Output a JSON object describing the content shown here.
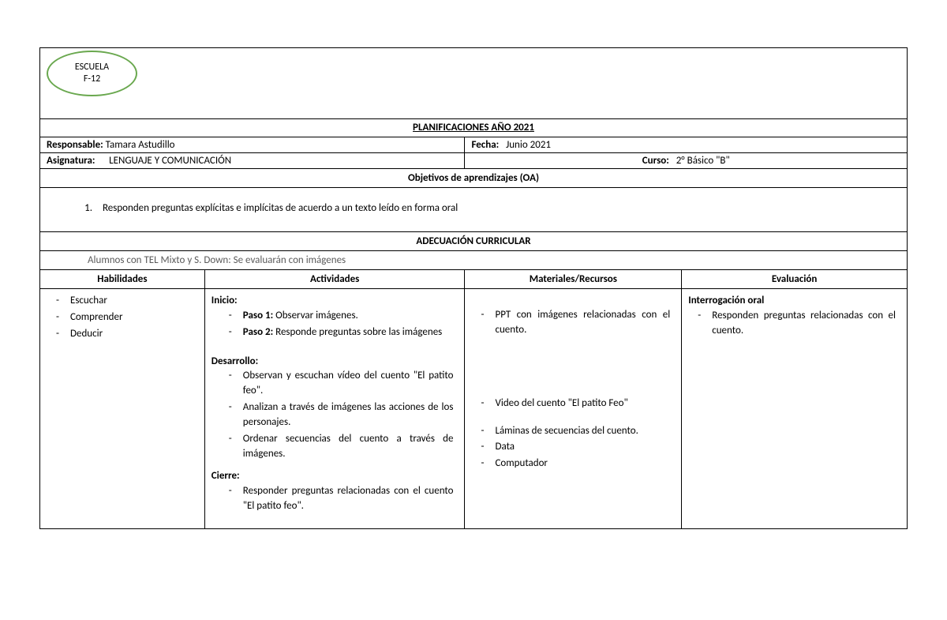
{
  "logo": {
    "line1": "ESCUELA",
    "line2": "F-12",
    "border_color": "#6aa84f"
  },
  "title": "PLANIFICACIONES AÑO 2021",
  "info": {
    "responsable_label": "Responsable:",
    "responsable_value": "Tamara Astudillo",
    "fecha_label": "Fecha:",
    "fecha_value": "Junio 2021",
    "asignatura_label": "Asignatura:",
    "asignatura_value": "LENGUAJE Y COMUNICACIÓN",
    "curso_label": "Curso:",
    "curso_value": "2° Básico \"B\""
  },
  "oa": {
    "header": "Objetivos de aprendizajes (OA)",
    "num": "1.",
    "text": "Responden preguntas explícitas e implícitas de acuerdo a un texto leído en forma oral"
  },
  "adec": {
    "header": "ADECUACIÓN CURRICULAR",
    "text": "Alumnos con TEL Mixto y S. Down: Se evaluarán con imágenes"
  },
  "columns": {
    "habilidades": "Habilidades",
    "actividades": "Actividades",
    "materiales": "Materiales/Recursos",
    "evaluacion": "Evaluación"
  },
  "habilidades": [
    "Escuchar",
    "Comprender",
    "Deducir"
  ],
  "actividades": {
    "inicio_label": "Inicio:",
    "inicio": [
      {
        "bold": "Paso 1:",
        "text": " Observar imágenes."
      },
      {
        "bold": "Paso 2:",
        "text": " Responde preguntas sobre las imágenes"
      }
    ],
    "desarrollo_label": "Desarrollo:",
    "desarrollo": [
      "Observan y escuchan vídeo del cuento \"El patito feo\".",
      "Analizan a través de imágenes las acciones de los personajes.",
      "Ordenar secuencias del cuento a través de imágenes."
    ],
    "cierre_label": "Cierre:",
    "cierre": [
      "Responder preguntas relacionadas con el cuento \"El patito feo\"."
    ]
  },
  "materiales_inicio": [
    "PPT con imágenes relacionadas con el cuento."
  ],
  "materiales_desarrollo": [
    "Video del cuento \"El patito Feo\"",
    "",
    "Láminas de secuencias del cuento.",
    "Data",
    "Computador"
  ],
  "evaluacion": {
    "title": "Interrogación oral",
    "items": [
      "Responden preguntas relacionadas con el cuento."
    ]
  }
}
